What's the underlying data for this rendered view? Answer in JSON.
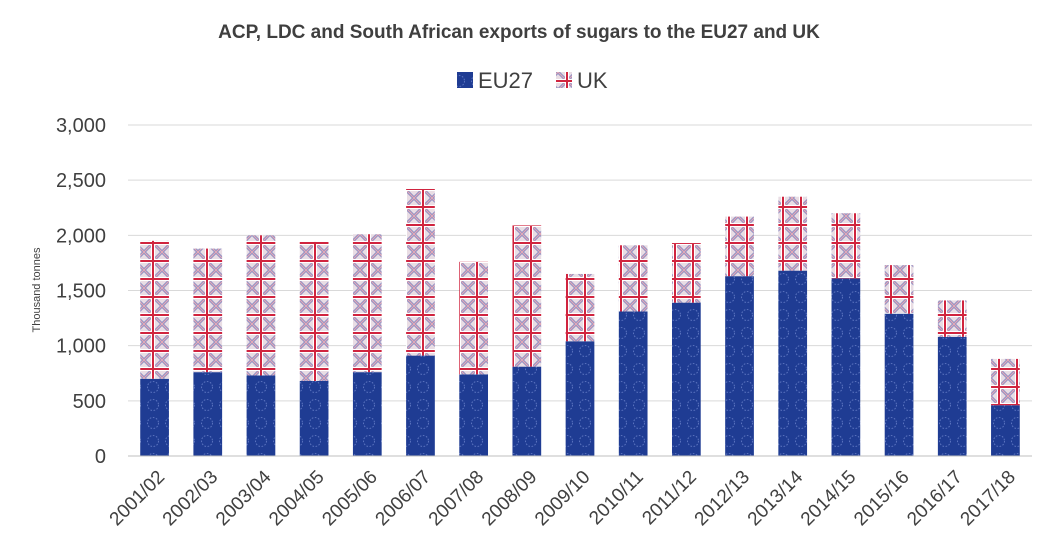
{
  "chart_data": {
    "type": "bar",
    "stacked": true,
    "title": "ACP, LDC and South African exports of sugars to the EU27 and UK",
    "xlabel": "",
    "ylabel": "Thousand tonnes",
    "ylim": [
      0,
      3000
    ],
    "yticks": [
      0,
      500,
      1000,
      1500,
      2000,
      2500,
      3000
    ],
    "ytick_labels": [
      "0",
      "500",
      "1,000",
      "1,500",
      "2,000",
      "2,500",
      "3,000"
    ],
    "grid": true,
    "legend_position": "top-center",
    "categories": [
      "2001/02",
      "2002/03",
      "2003/04",
      "2004/05",
      "2005/06",
      "2006/07",
      "2007/08",
      "2008/09",
      "2009/10",
      "2010/11",
      "2011/12",
      "2012/13",
      "2013/14",
      "2014/15",
      "2015/16",
      "2016/17",
      "2017/18"
    ],
    "series": [
      {
        "name": "EU27",
        "color": "#1f3c93",
        "pattern": "eu-flag",
        "values": [
          700,
          760,
          730,
          680,
          760,
          910,
          740,
          810,
          1040,
          1310,
          1390,
          1630,
          1680,
          1610,
          1290,
          1080,
          460
        ]
      },
      {
        "name": "UK",
        "color": "#c8102e",
        "pattern": "union-flag",
        "values": [
          1250,
          1120,
          1270,
          1260,
          1250,
          1510,
          1020,
          1280,
          610,
          600,
          540,
          540,
          670,
          590,
          440,
          330,
          420
        ]
      }
    ]
  }
}
